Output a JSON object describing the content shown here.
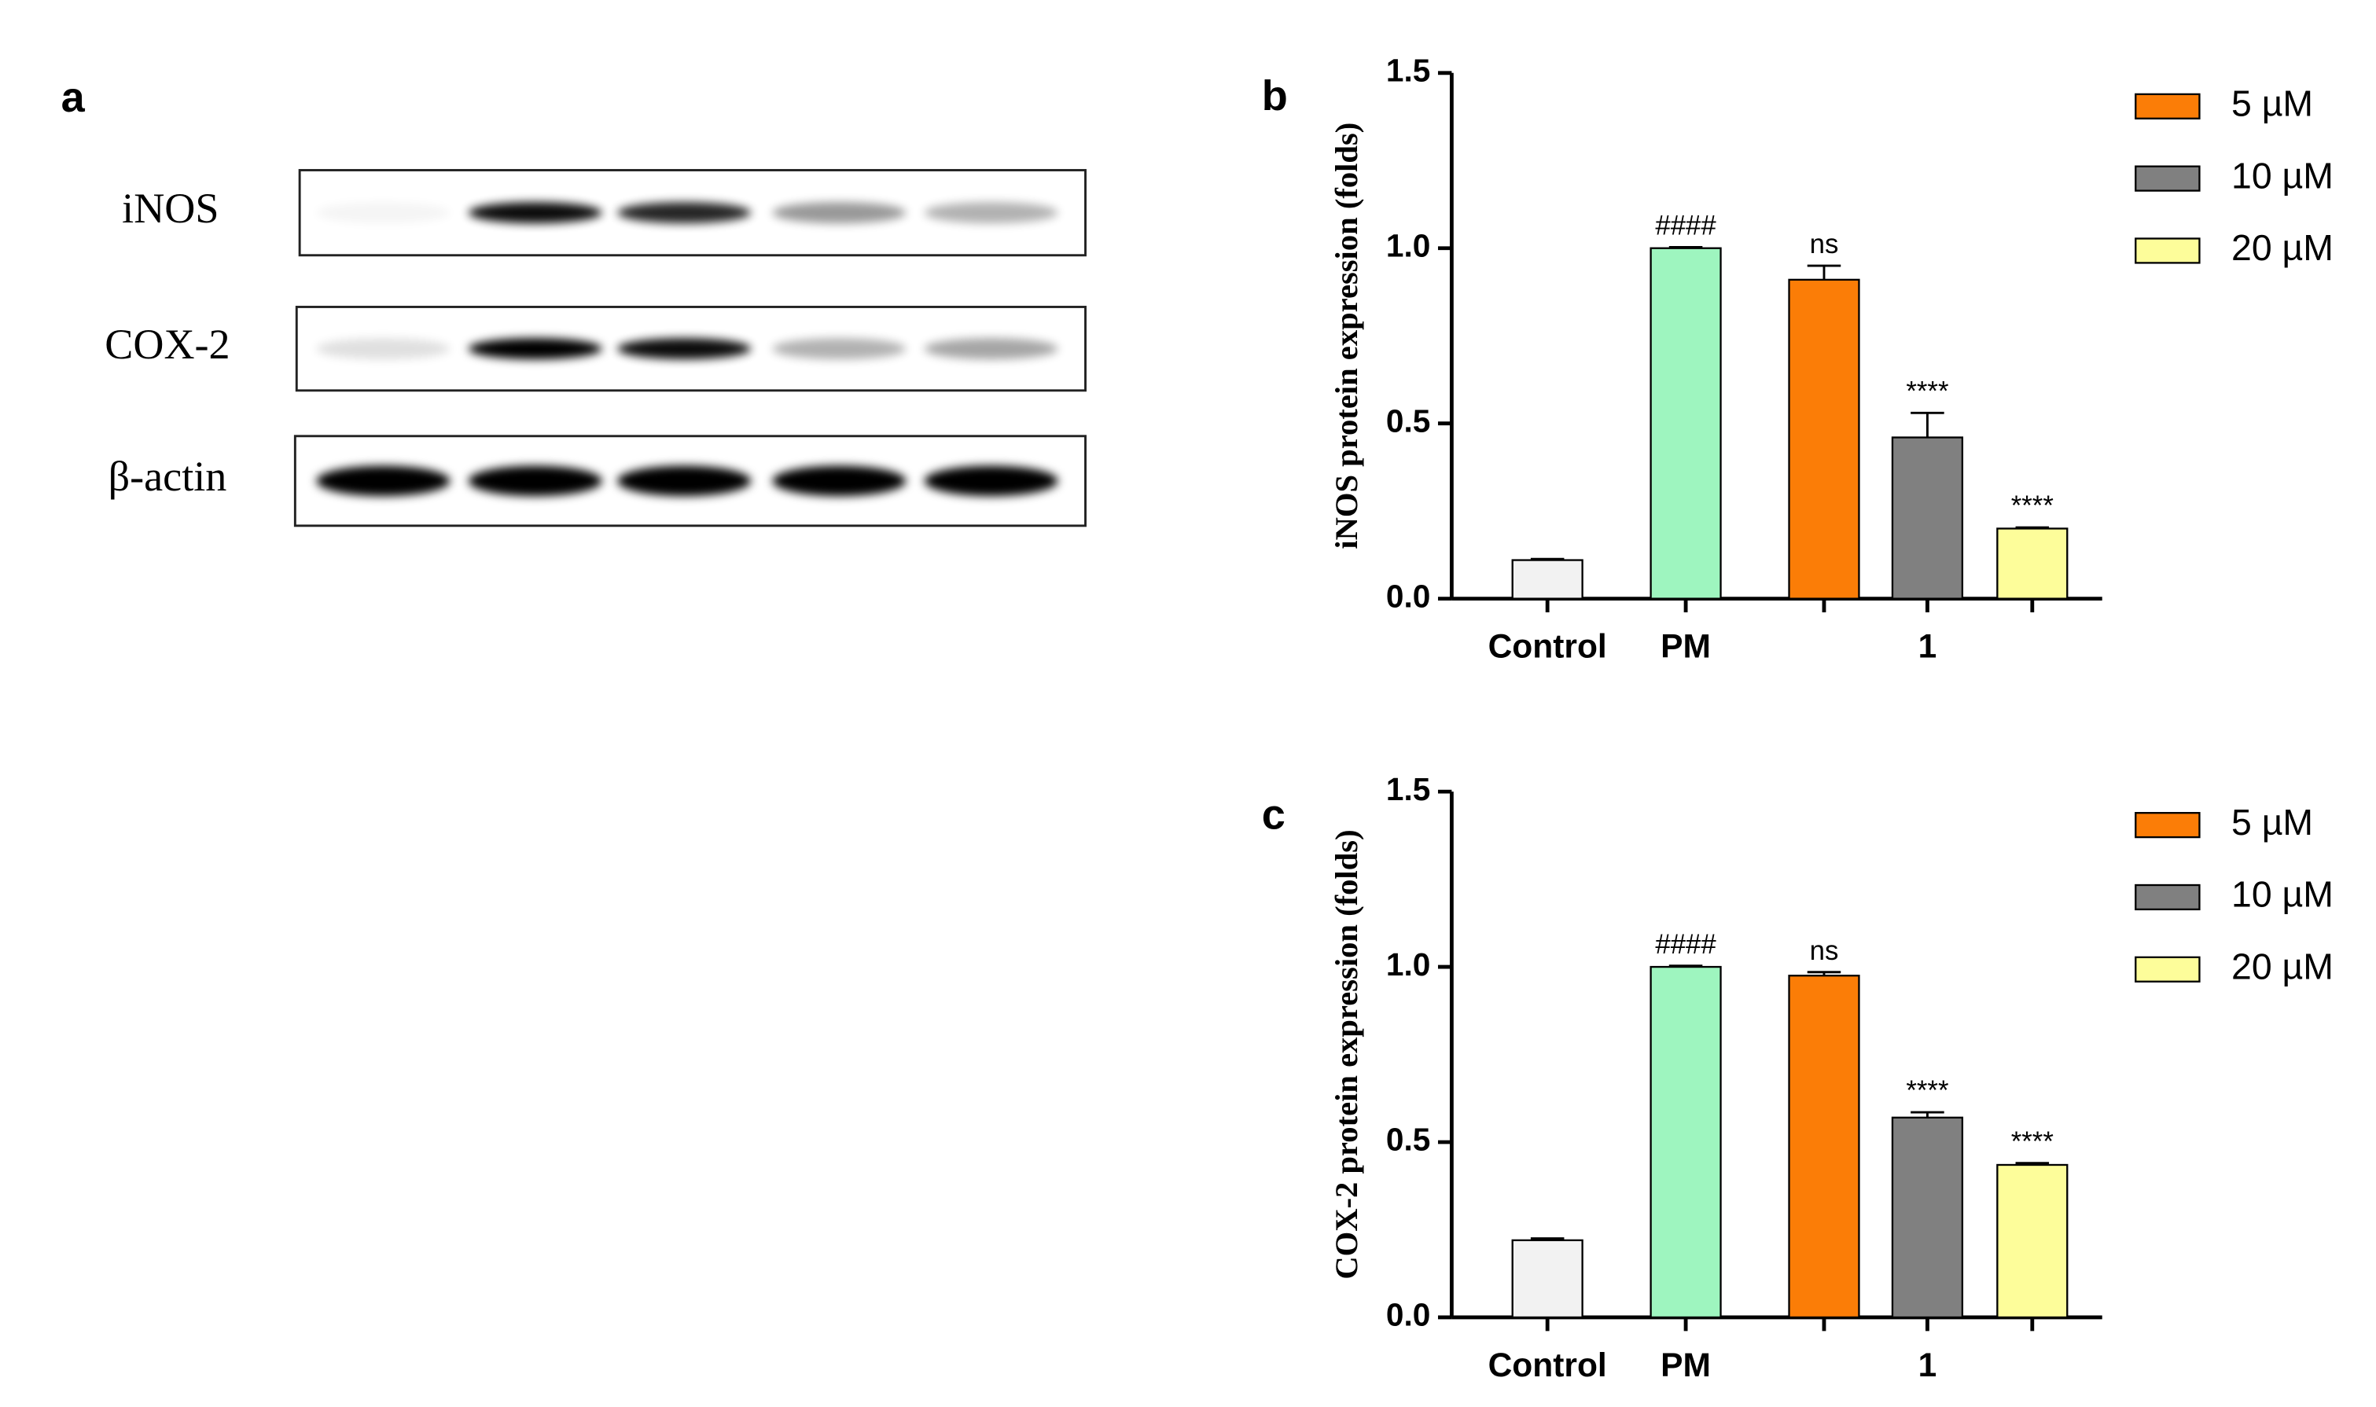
{
  "blot": {
    "label": "a",
    "rows": [
      "iNOS",
      "COX-2",
      "β-actin"
    ]
  },
  "chart_data": [
    {
      "type": "bar",
      "panel_label": "b",
      "y_label": "iNOS protein expression (folds)",
      "ylim": [
        0,
        1.5
      ],
      "yticks": [
        {
          "value": 0,
          "label": "0.0"
        },
        {
          "value": 0.5,
          "label": "0.5"
        },
        {
          "value": 1,
          "label": "1.0"
        },
        {
          "value": 1.5,
          "label": "1.5"
        }
      ],
      "groups": [
        {
          "label": "Control",
          "bars": [
            {
              "value": 0.11,
              "error": 0.003,
              "color": "#f2f2f2"
            }
          ]
        },
        {
          "label": "PM",
          "bars": [
            {
              "value": 1.0,
              "error": 0.003,
              "color": "#9ef5bf",
              "annotation": "####"
            }
          ]
        },
        {
          "label": "1",
          "bars": [
            {
              "name": "5 µM",
              "value": 0.91,
              "error": 0.04,
              "color": "#fb7d07",
              "annotation": "ns"
            },
            {
              "name": "10 µM",
              "value": 0.46,
              "error": 0.07,
              "color": "#808080",
              "annotation": "****"
            },
            {
              "name": "20 µM",
              "value": 0.2,
              "error": 0.003,
              "color": "#fdfd9a",
              "annotation": "****"
            }
          ]
        }
      ]
    },
    {
      "type": "bar",
      "panel_label": "c",
      "y_label": "COX-2 protein expression (folds)",
      "ylim": [
        0,
        1.5
      ],
      "yticks": [
        {
          "value": 0,
          "label": "0.0"
        },
        {
          "value": 0.5,
          "label": "0.5"
        },
        {
          "value": 1,
          "label": "1.0"
        },
        {
          "value": 1.5,
          "label": "1.5"
        }
      ],
      "groups": [
        {
          "label": "Control",
          "bars": [
            {
              "value": 0.22,
              "error": 0.005,
              "color": "#f2f2f2"
            }
          ]
        },
        {
          "label": "PM",
          "bars": [
            {
              "value": 1.0,
              "error": 0.003,
              "color": "#9ef5bf",
              "annotation": "####"
            }
          ]
        },
        {
          "label": "1",
          "bars": [
            {
              "name": "5 µM",
              "value": 0.975,
              "error": 0.01,
              "color": "#fb7d07",
              "annotation": "ns"
            },
            {
              "name": "10 µM",
              "value": 0.57,
              "error": 0.015,
              "color": "#808080",
              "annotation": "****"
            },
            {
              "name": "20 µM",
              "value": 0.435,
              "error": 0.005,
              "color": "#fdfd9a",
              "annotation": "****"
            }
          ]
        }
      ]
    }
  ]
}
